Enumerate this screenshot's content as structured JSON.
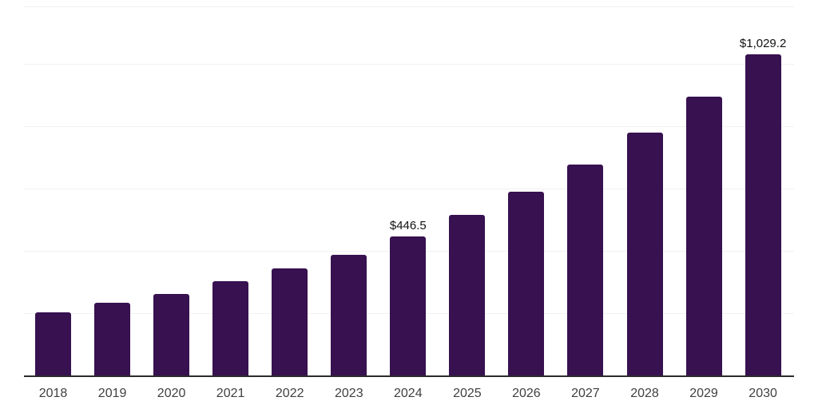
{
  "chart_data": {
    "type": "bar",
    "title": "",
    "xlabel": "",
    "ylabel": "",
    "categories": [
      "2018",
      "2019",
      "2020",
      "2021",
      "2022",
      "2023",
      "2024",
      "2025",
      "2026",
      "2027",
      "2028",
      "2029",
      "2030"
    ],
    "values": [
      203.1,
      233.5,
      261.8,
      301.5,
      342.5,
      388.0,
      446.5,
      514.5,
      590.5,
      677.5,
      780.0,
      895.5,
      1029.2
    ],
    "data_labels": [
      "",
      "",
      "",
      "",
      "",
      "",
      "$446.5",
      "",
      "",
      "",
      "",
      "",
      "$1,029.2"
    ],
    "ylim": [
      0,
      1184
    ],
    "gridline_values": [
      200,
      400,
      600,
      800,
      1000
    ],
    "grid": "horizontal-light",
    "y_tick_labels_visible": false,
    "legend_position": "none"
  },
  "colors": {
    "bar": "#371150",
    "axis_line": "#2b2b2b",
    "gridline": "#f1f1f1",
    "tick_label": "#404040",
    "data_label": "#111111",
    "background": "#ffffff"
  }
}
